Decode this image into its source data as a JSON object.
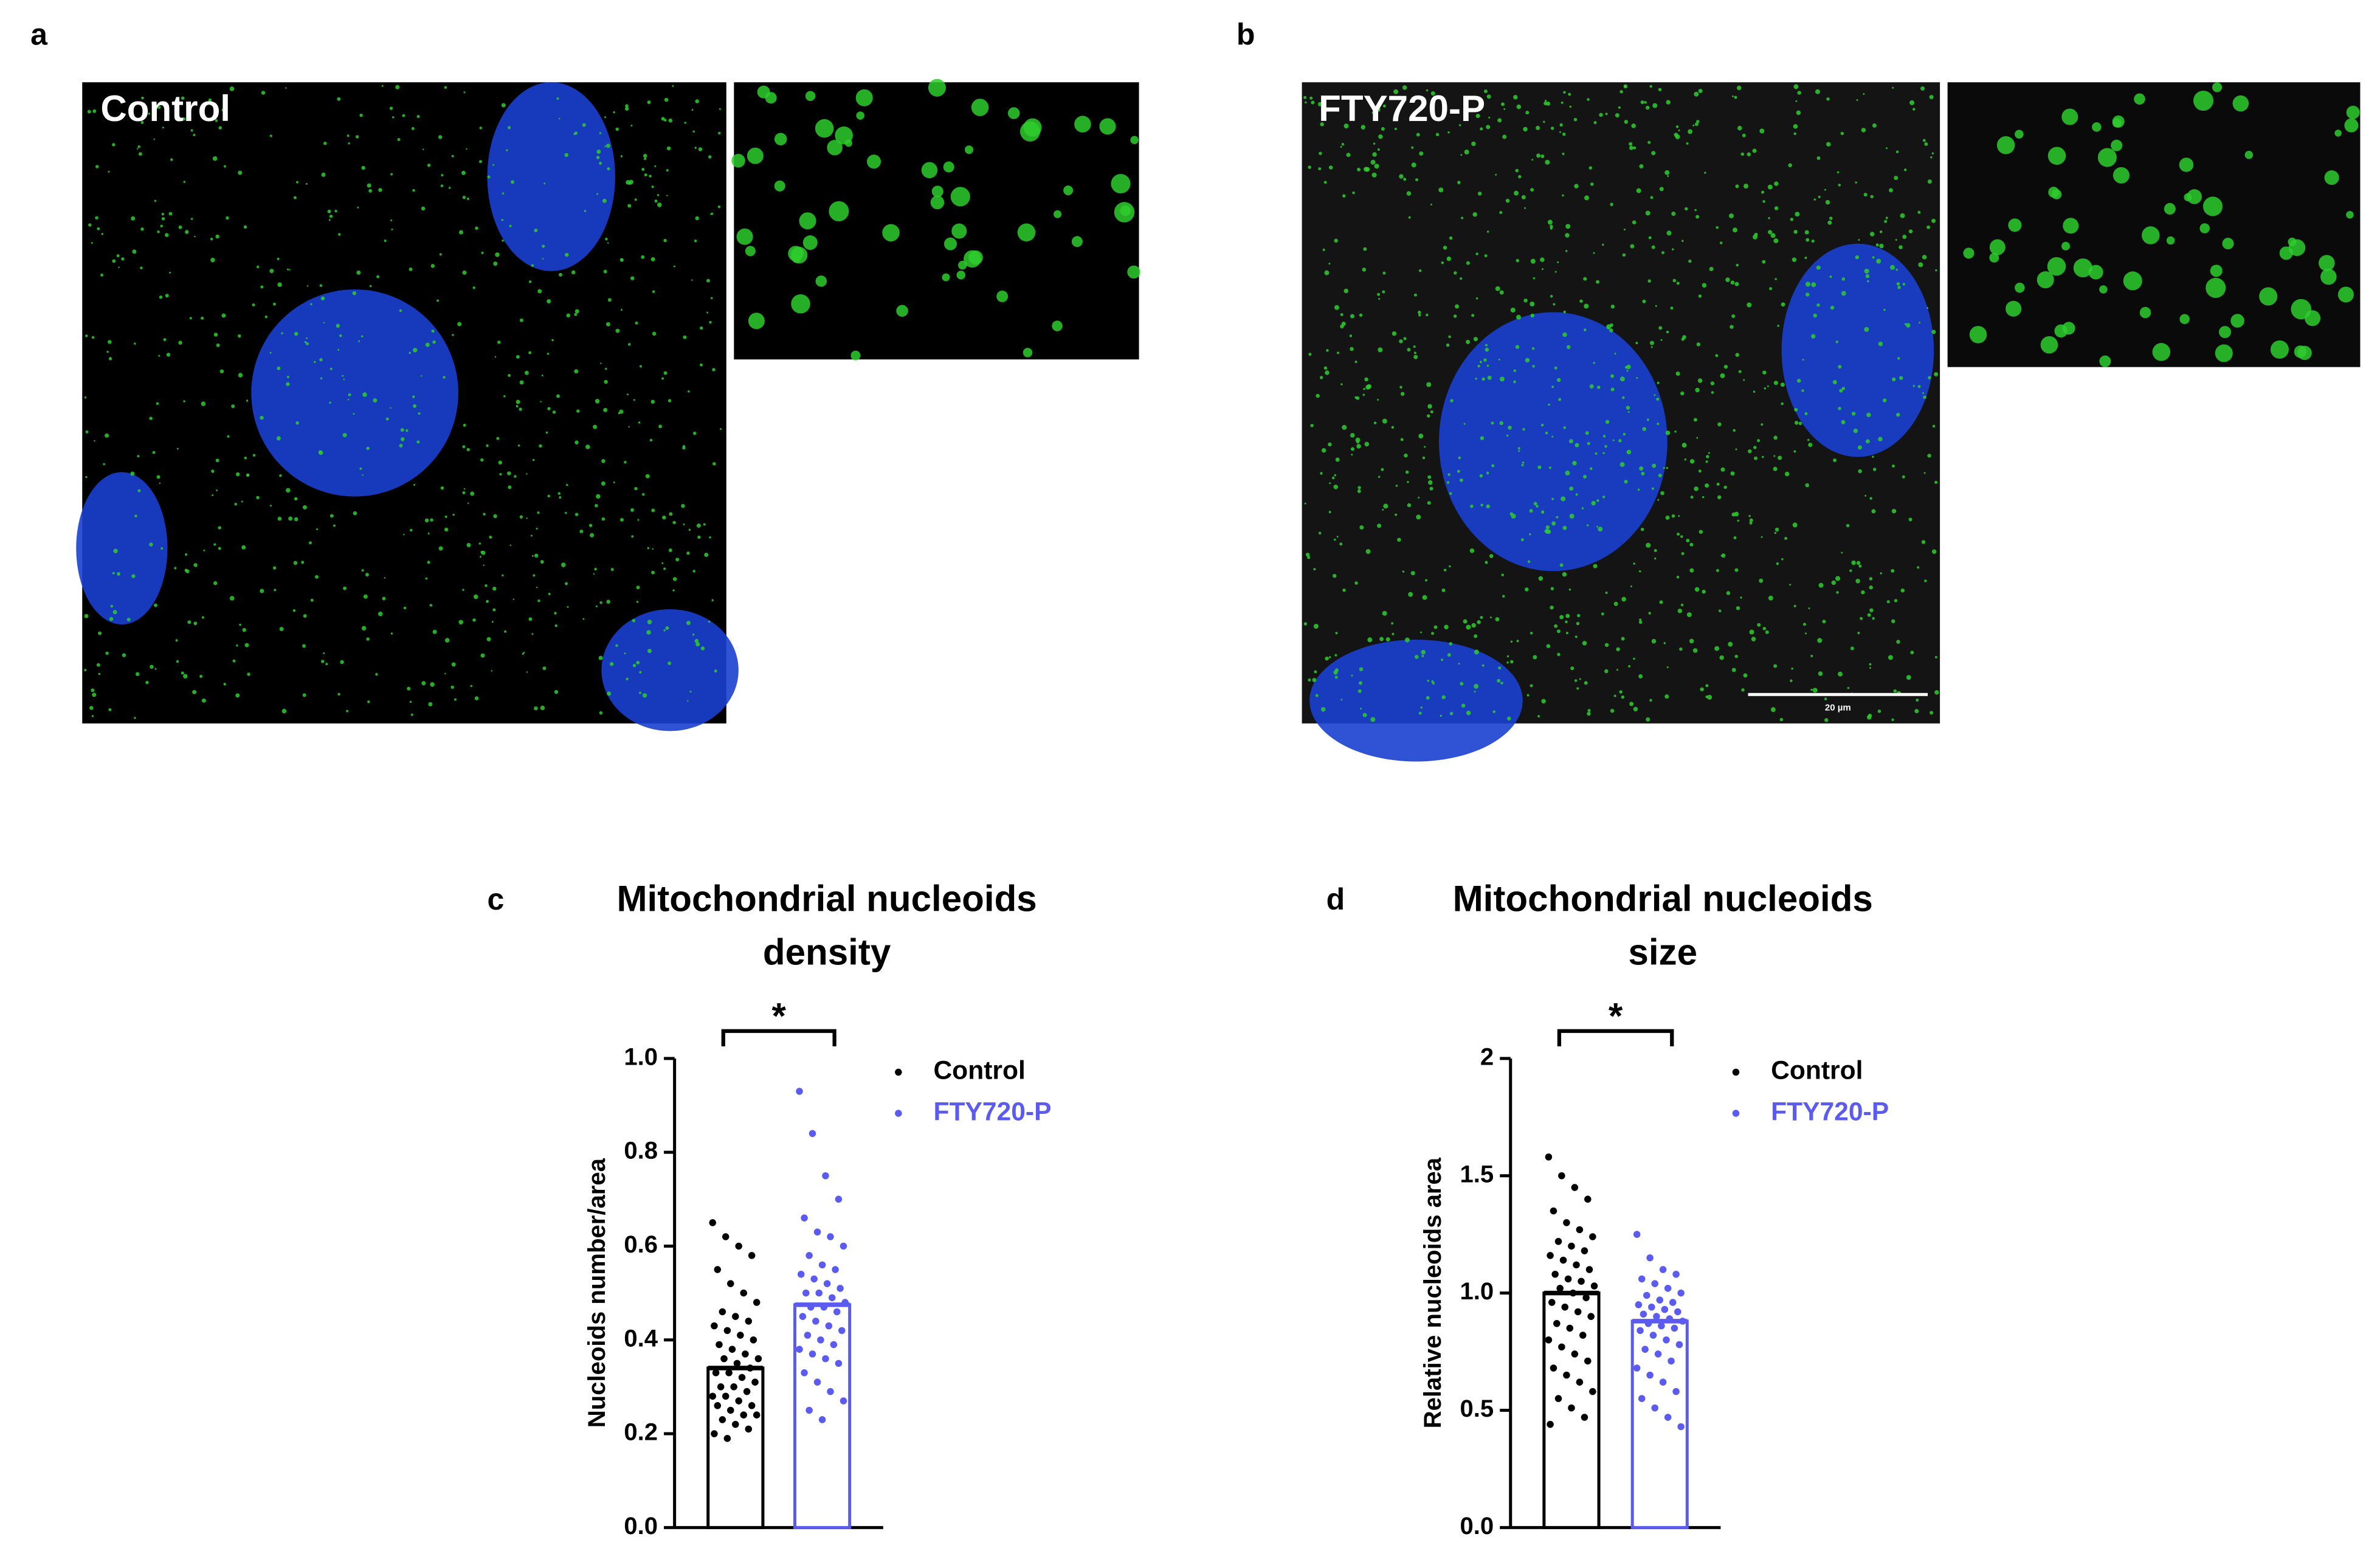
{
  "figure": {
    "panel_labels": [
      "a",
      "b",
      "c",
      "d"
    ],
    "images": [
      {
        "label": "Control"
      },
      {
        "label": "FTY720-P",
        "scale_bar": "20 µm"
      }
    ]
  },
  "chart_data": [
    {
      "type": "bar",
      "title": [
        "Mitochondrial nucleoids",
        "density"
      ],
      "y_label": "Nucleoids number/area",
      "ylim": [
        0,
        1.0
      ],
      "yticks": [
        {
          "value": 0,
          "label": "0.0"
        },
        {
          "value": 0.2,
          "label": "0.2"
        },
        {
          "value": 0.4,
          "label": "0.4"
        },
        {
          "value": 0.6,
          "label": "0.6"
        },
        {
          "value": 0.8,
          "label": "0.8"
        },
        {
          "value": 1.0,
          "label": "1.0"
        }
      ],
      "annotation": "*",
      "series": [
        {
          "name": "Control",
          "color": "#000000",
          "values": [
            0.34
          ],
          "points": [
            0.65,
            0.62,
            0.6,
            0.58,
            0.55,
            0.52,
            0.5,
            0.48,
            0.46,
            0.45,
            0.44,
            0.43,
            0.42,
            0.41,
            0.4,
            0.39,
            0.38,
            0.37,
            0.36,
            0.36,
            0.35,
            0.34,
            0.33,
            0.33,
            0.32,
            0.31,
            0.3,
            0.3,
            0.29,
            0.28,
            0.28,
            0.27,
            0.26,
            0.26,
            0.25,
            0.24,
            0.24,
            0.23,
            0.22,
            0.21,
            0.2,
            0.19
          ]
        },
        {
          "name": "FTY720-P",
          "color": "#5b5bf0",
          "values": [
            0.475
          ],
          "points": [
            0.93,
            0.84,
            0.75,
            0.7,
            0.66,
            0.63,
            0.62,
            0.6,
            0.58,
            0.56,
            0.55,
            0.54,
            0.53,
            0.52,
            0.51,
            0.5,
            0.5,
            0.49,
            0.48,
            0.47,
            0.47,
            0.46,
            0.45,
            0.44,
            0.43,
            0.42,
            0.41,
            0.4,
            0.39,
            0.38,
            0.37,
            0.36,
            0.35,
            0.33,
            0.31,
            0.29,
            0.27,
            0.25,
            0.23
          ]
        }
      ]
    },
    {
      "type": "bar",
      "title": [
        "Mitochondrial nucleoids",
        "size"
      ],
      "y_label": "Relative nucleoids area",
      "ylim": [
        0,
        2.0
      ],
      "yticks": [
        {
          "value": 0,
          "label": "0.0"
        },
        {
          "value": 0.5,
          "label": "0.5"
        },
        {
          "value": 1.0,
          "label": "1.0"
        },
        {
          "value": 1.5,
          "label": "1.5"
        },
        2.0
      ],
      "annotation": "*",
      "series": [
        {
          "name": "Control",
          "color": "#000000",
          "values": [
            1.0
          ],
          "points": [
            1.58,
            1.5,
            1.45,
            1.4,
            1.35,
            1.3,
            1.27,
            1.24,
            1.22,
            1.2,
            1.18,
            1.16,
            1.14,
            1.12,
            1.1,
            1.08,
            1.06,
            1.05,
            1.03,
            1.02,
            1.0,
            0.98,
            0.96,
            0.94,
            0.92,
            0.9,
            0.87,
            0.85,
            0.82,
            0.8,
            0.77,
            0.74,
            0.71,
            0.68,
            0.65,
            0.62,
            0.58,
            0.55,
            0.51,
            0.47,
            0.44
          ]
        },
        {
          "name": "FTY720-P",
          "color": "#5b5bf0",
          "values": [
            0.88
          ],
          "points": [
            1.25,
            1.15,
            1.1,
            1.08,
            1.06,
            1.04,
            1.02,
            1.0,
            0.99,
            0.97,
            0.96,
            0.95,
            0.94,
            0.93,
            0.92,
            0.91,
            0.9,
            0.89,
            0.88,
            0.87,
            0.86,
            0.85,
            0.84,
            0.82,
            0.8,
            0.78,
            0.76,
            0.74,
            0.71,
            0.68,
            0.65,
            0.62,
            0.58,
            0.55,
            0.51,
            0.47,
            0.43
          ]
        }
      ]
    }
  ]
}
